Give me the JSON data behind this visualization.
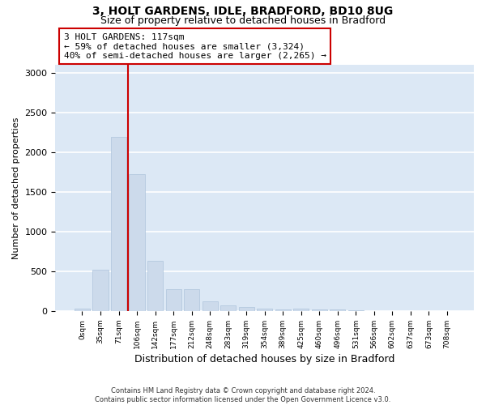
{
  "title_line1": "3, HOLT GARDENS, IDLE, BRADFORD, BD10 8UG",
  "title_line2": "Size of property relative to detached houses in Bradford",
  "xlabel": "Distribution of detached houses by size in Bradford",
  "ylabel": "Number of detached properties",
  "bar_color": "#ccdaeb",
  "bar_edge_color": "#aec4db",
  "vline_color": "#cc0000",
  "vline_x": 2.5,
  "annotation_text": "3 HOLT GARDENS: 117sqm\n← 59% of detached houses are smaller (3,324)\n40% of semi-detached houses are larger (2,265) →",
  "annotation_box_color": "#ffffff",
  "annotation_box_edge": "#cc0000",
  "categories": [
    "0sqm",
    "35sqm",
    "71sqm",
    "106sqm",
    "142sqm",
    "177sqm",
    "212sqm",
    "248sqm",
    "283sqm",
    "319sqm",
    "354sqm",
    "389sqm",
    "425sqm",
    "460sqm",
    "496sqm",
    "531sqm",
    "566sqm",
    "602sqm",
    "637sqm",
    "673sqm",
    "708sqm"
  ],
  "values": [
    28,
    520,
    2190,
    1720,
    635,
    280,
    275,
    120,
    68,
    48,
    28,
    18,
    28,
    18,
    18,
    8,
    0,
    0,
    0,
    0,
    0
  ],
  "ylim": [
    0,
    3100
  ],
  "yticks": [
    0,
    500,
    1000,
    1500,
    2000,
    2500,
    3000
  ],
  "background_color": "#dce8f5",
  "grid_color": "#ffffff",
  "footnote_line1": "Contains HM Land Registry data © Crown copyright and database right 2024.",
  "footnote_line2": "Contains public sector information licensed under the Open Government Licence v3.0.",
  "fig_facecolor": "#ffffff",
  "fig_width": 6.0,
  "fig_height": 5.0,
  "dpi": 100
}
